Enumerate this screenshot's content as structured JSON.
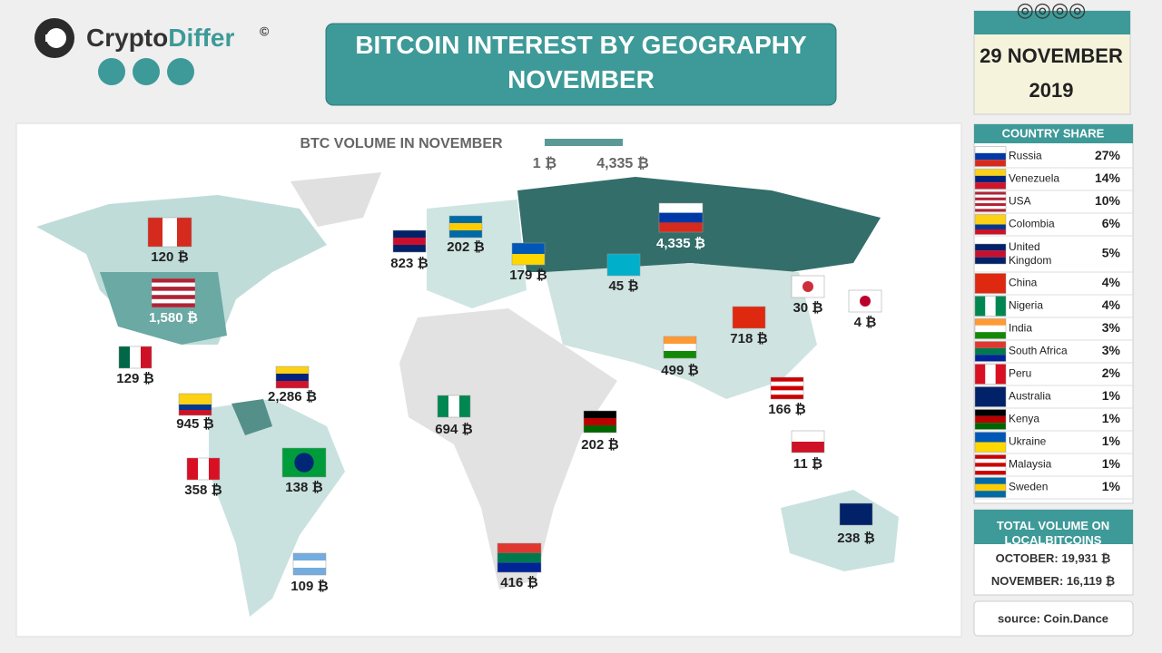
{
  "header": {
    "brand_parts": [
      "Crypto",
      "Differ"
    ],
    "copyright": "©",
    "title": "BITCOIN INTEREST BY GEOGRAPHY NOVEMBER",
    "date_line1": "29 NOVEMBER",
    "date_line2": "2019"
  },
  "map": {
    "legend_title": "BTC VOLUME IN NOVEMBER",
    "legend_min": "1 ₿",
    "legend_max": "4,335 ₿",
    "labels": [
      "120 ₿",
      "1,580 ₿",
      "129 ₿",
      "2,286 ₿",
      "945 ₿",
      "358 ₿",
      "138 ₿",
      "109 ₿",
      "823 ₿",
      "202 ₿",
      "179 ₿",
      "45 ₿",
      "4,335 ₿",
      "30 ₿",
      "4 ₿",
      "718 ₿",
      "499 ₿",
      "166 ₿",
      "694 ₿",
      "202 ₿",
      "11 ₿",
      "416 ₿",
      "238 ₿"
    ]
  },
  "share": {
    "title": "COUNTRY SHARE",
    "rows": [
      [
        "Russia",
        "27%"
      ],
      [
        "Venezuela",
        "14%"
      ],
      [
        "USA",
        "10%"
      ],
      [
        "Colombia",
        "6%"
      ],
      [
        "United Kingdom",
        "5%"
      ],
      [
        "China",
        "4%"
      ],
      [
        "Nigeria",
        "4%"
      ],
      [
        "India",
        "3%"
      ],
      [
        "South Africa",
        "3%"
      ],
      [
        "Peru",
        "2%"
      ],
      [
        "Australia",
        "1%"
      ],
      [
        "Kenya",
        "1%"
      ],
      [
        "Ukraine",
        "1%"
      ],
      [
        "Malaysia",
        "1%"
      ],
      [
        "Sweden",
        "1%"
      ]
    ]
  },
  "totals": {
    "title": "TOTAL VOLUME ON LOCALBITCOINS",
    "rows": [
      [
        "OCTOBER:",
        "19,931 ₿"
      ],
      [
        "NOVEMBER:",
        "16,119 ₿"
      ]
    ]
  },
  "source": "source: Coin.Dance"
}
